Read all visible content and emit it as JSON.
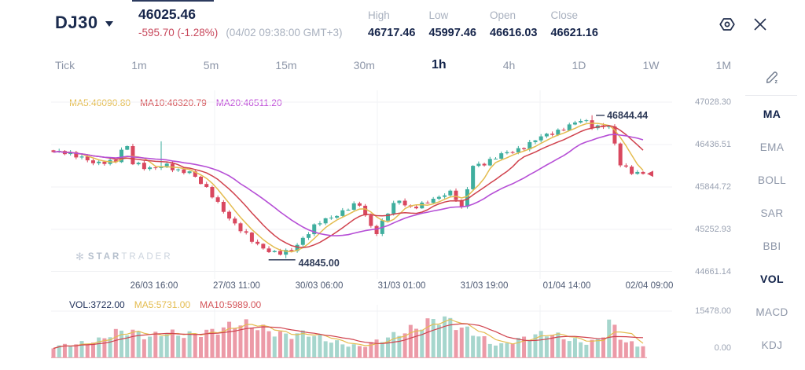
{
  "header": {
    "symbol": "DJ30",
    "last_price": "46025.46",
    "change": "-595.70 (-1.28%)",
    "timestamp": "(04/02 09:38:00 GMT+3)",
    "stats": [
      {
        "label": "High",
        "value": "46717.46"
      },
      {
        "label": "Low",
        "value": "45997.46"
      },
      {
        "label": "Open",
        "value": "46616.03"
      },
      {
        "label": "Close",
        "value": "46621.16"
      }
    ]
  },
  "timeframes": {
    "items": [
      "Tick",
      "1m",
      "5m",
      "15m",
      "30m",
      "1h",
      "4h",
      "1D",
      "1W",
      "1M"
    ],
    "active": "1h"
  },
  "sidebar": {
    "items": [
      {
        "label": "MA",
        "active": true
      },
      {
        "label": "EMA",
        "active": false
      },
      {
        "label": "BOLL",
        "active": false
      },
      {
        "label": "SAR",
        "active": false
      },
      {
        "label": "BBI",
        "active": false
      },
      {
        "label": "VOL",
        "active": true
      },
      {
        "label": "MACD",
        "active": false
      },
      {
        "label": "KDJ",
        "active": false
      }
    ]
  },
  "watermark": {
    "brand_bold": "STAR",
    "brand_light": "TRADER"
  },
  "colors": {
    "navy_text": "#15244a",
    "gray_text": "#a9b1bf",
    "red": "#c8485c",
    "candle_up": "#3fae9e",
    "candle_down": "#d9485f",
    "vol_up": "#a6d6cd",
    "vol_down": "#ec9aa7",
    "ma5": "#e4bc4f",
    "ma10": "#d0424d",
    "ma20": "#b64fd6",
    "grid": "#f0f1f4"
  },
  "chart_data": {
    "type": "candlestick+volume",
    "symbol": "DJ30",
    "interval": "1h",
    "title": "DJ30 1h candlestick chart with MA(5,10,20) overlay and VOL(MA5,MA10) pane",
    "grid": true,
    "price_axis_ticks": [
      "47028.30",
      "46436.51",
      "45844.72",
      "45252.93",
      "44661.14"
    ],
    "price_axis_range": [
      44661.14,
      47028.3
    ],
    "time_axis_labels": [
      "26/03 16:00",
      "27/03 11:00",
      "30/03 06:00",
      "31/03 01:00",
      "31/03 19:00",
      "01/04 14:00",
      "02/04 09:00"
    ],
    "volume_axis_ticks": [
      "15478.00",
      "0.00"
    ],
    "volume_axis_range": [
      0,
      15478
    ],
    "price_legend": [
      {
        "label": "MA5:46090.80",
        "color": "#e4bc4f"
      },
      {
        "label": "MA10:46320.79",
        "color": "#d4555a"
      },
      {
        "label": "MA20:46511.20",
        "color": "#c050d8"
      }
    ],
    "volume_legend": [
      {
        "label": "VOL:3722.00",
        "color": "#22335c"
      },
      {
        "label": "MA5:5731.00",
        "color": "#e4bc4f"
      },
      {
        "label": "MA10:5989.00",
        "color": "#d4555a"
      }
    ],
    "annotations": {
      "high": {
        "value": "46844.44",
        "price": 46844.44
      },
      "low": {
        "value": "44845.00",
        "price": 44845.0
      }
    },
    "ohlc_current_bar": {
      "open": 46616.03,
      "high": 46717.46,
      "low": 45997.46,
      "close": 46621.16
    },
    "last_price": 46025.46,
    "change": -595.7,
    "change_pct": -1.28,
    "candle_count": 105,
    "close_path": [
      [
        0.0,
        46330
      ],
      [
        0.046,
        46280
      ],
      [
        0.073,
        46150
      ],
      [
        0.11,
        46230
      ],
      [
        0.121,
        46520
      ],
      [
        0.133,
        46170
      ],
      [
        0.159,
        46100
      ],
      [
        0.189,
        46160
      ],
      [
        0.208,
        46050
      ],
      [
        0.232,
        46070
      ],
      [
        0.248,
        45920
      ],
      [
        0.27,
        45700
      ],
      [
        0.292,
        45480
      ],
      [
        0.312,
        45280
      ],
      [
        0.336,
        45090
      ],
      [
        0.359,
        44980
      ],
      [
        0.381,
        44900
      ],
      [
        0.402,
        44940
      ],
      [
        0.425,
        45150
      ],
      [
        0.447,
        45320
      ],
      [
        0.471,
        45420
      ],
      [
        0.498,
        45540
      ],
      [
        0.518,
        45600
      ],
      [
        0.535,
        45350
      ],
      [
        0.546,
        45190
      ],
      [
        0.567,
        45480
      ],
      [
        0.584,
        45660
      ],
      [
        0.604,
        45560
      ],
      [
        0.628,
        45600
      ],
      [
        0.651,
        45680
      ],
      [
        0.671,
        45800
      ],
      [
        0.688,
        45640
      ],
      [
        0.697,
        45420
      ],
      [
        0.706,
        46120
      ],
      [
        0.73,
        46180
      ],
      [
        0.757,
        46280
      ],
      [
        0.779,
        46340
      ],
      [
        0.801,
        46420
      ],
      [
        0.823,
        46520
      ],
      [
        0.846,
        46600
      ],
      [
        0.87,
        46680
      ],
      [
        0.899,
        46780
      ],
      [
        0.916,
        46690
      ],
      [
        0.933,
        46700
      ],
      [
        0.947,
        46660
      ],
      [
        0.957,
        46180
      ],
      [
        0.969,
        46120
      ],
      [
        0.982,
        46060
      ],
      [
        1.0,
        46025.46
      ]
    ],
    "tall_wicks": [
      {
        "x_frac": 0.186,
        "high": 46480
      }
    ],
    "volume_path": [
      [
        0.0,
        4200
      ],
      [
        0.04,
        5200
      ],
      [
        0.08,
        6800
      ],
      [
        0.1,
        9600
      ],
      [
        0.13,
        10400
      ],
      [
        0.16,
        7800
      ],
      [
        0.19,
        9800
      ],
      [
        0.22,
        8600
      ],
      [
        0.25,
        9400
      ],
      [
        0.28,
        10600
      ],
      [
        0.31,
        13200
      ],
      [
        0.34,
        12400
      ],
      [
        0.37,
        9800
      ],
      [
        0.4,
        8400
      ],
      [
        0.43,
        9600
      ],
      [
        0.46,
        7000
      ],
      [
        0.49,
        5200
      ],
      [
        0.52,
        4200
      ],
      [
        0.55,
        6400
      ],
      [
        0.58,
        8800
      ],
      [
        0.6,
        10400
      ],
      [
        0.63,
        12800
      ],
      [
        0.65,
        15200
      ],
      [
        0.67,
        14400
      ],
      [
        0.69,
        11600
      ],
      [
        0.72,
        8800
      ],
      [
        0.74,
        5600
      ],
      [
        0.76,
        4800
      ],
      [
        0.78,
        6400
      ],
      [
        0.8,
        7600
      ],
      [
        0.82,
        8800
      ],
      [
        0.84,
        9600
      ],
      [
        0.86,
        8000
      ],
      [
        0.88,
        6800
      ],
      [
        0.9,
        5600
      ],
      [
        0.92,
        6400
      ],
      [
        0.93,
        8000
      ],
      [
        0.945,
        15200
      ],
      [
        0.955,
        9600
      ],
      [
        0.97,
        6000
      ],
      [
        0.985,
        5200
      ],
      [
        1.0,
        3722
      ]
    ],
    "last_volume": 3722
  }
}
